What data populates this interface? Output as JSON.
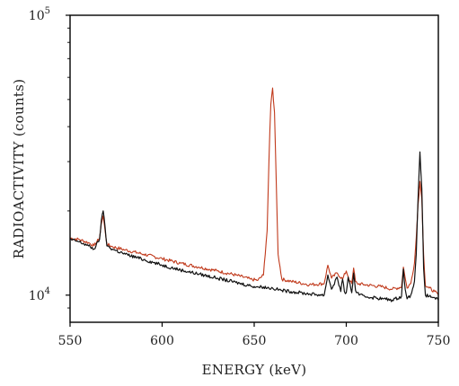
{
  "chart_data": {
    "type": "line",
    "title": "",
    "xlabel": "ENERGY (keV)",
    "ylabel": "RADIOACTIVITY (counts)",
    "xlim": [
      550,
      750
    ],
    "ylim": [
      8000,
      100000
    ],
    "yscale": "log",
    "grid": false,
    "x_ticks": [
      550,
      600,
      650,
      700,
      750
    ],
    "y_ticks": [
      {
        "value": 10000,
        "base": "10",
        "exponent": "4"
      },
      {
        "value": 100000,
        "base": "10",
        "exponent": "5"
      }
    ],
    "series": [
      {
        "color": "#c0391b",
        "x": [
          550,
          555,
          560,
          563,
          566,
          567,
          568,
          569,
          570,
          573,
          580,
          590,
          600,
          610,
          620,
          630,
          640,
          648,
          652,
          655,
          657,
          658,
          659,
          660,
          661,
          662,
          663,
          665,
          670,
          680,
          688,
          690,
          692,
          695,
          698,
          700,
          702,
          703,
          704,
          705,
          706,
          710,
          720,
          725,
          730,
          731,
          732,
          733,
          735,
          737,
          738,
          739,
          740,
          741,
          742,
          743,
          745,
          748,
          750
        ],
        "y": [
          16000,
          15800,
          15400,
          15000,
          16000,
          18000,
          19200,
          17000,
          15200,
          14900,
          14500,
          14000,
          13500,
          13000,
          12600,
          12200,
          11800,
          11400,
          11300,
          11800,
          17000,
          30000,
          48000,
          55000,
          45000,
          25000,
          14000,
          11400,
          11200,
          10900,
          11000,
          12800,
          11500,
          12000,
          11400,
          12200,
          11200,
          11000,
          12500,
          11200,
          11000,
          10900,
          10700,
          10500,
          10700,
          12600,
          11500,
          10600,
          11000,
          13000,
          16000,
          21000,
          25500,
          22000,
          14000,
          10800,
          10600,
          10300,
          10000
        ]
      },
      {
        "color": "#111111",
        "x": [
          550,
          555,
          560,
          563,
          566,
          567,
          568,
          569,
          570,
          573,
          580,
          590,
          600,
          610,
          620,
          630,
          640,
          648,
          652,
          655,
          658,
          660,
          662,
          665,
          670,
          680,
          688,
          690,
          692,
          695,
          697,
          698,
          699,
          700,
          701,
          703,
          704,
          705,
          707,
          710,
          720,
          725,
          730,
          731,
          732,
          733,
          735,
          737,
          738,
          739,
          740,
          741,
          742,
          743,
          745,
          748,
          750
        ],
        "y": [
          15800,
          15500,
          15000,
          14600,
          15800,
          18500,
          20000,
          17500,
          15000,
          14600,
          14000,
          13400,
          12800,
          12300,
          11900,
          11500,
          11100,
          10800,
          10700,
          10700,
          10600,
          10600,
          10500,
          10400,
          10300,
          10100,
          10000,
          11800,
          10500,
          11600,
          10300,
          11400,
          10300,
          10200,
          11600,
          10200,
          12000,
          10400,
          10000,
          9900,
          9700,
          9600,
          9900,
          12400,
          10500,
          9700,
          10000,
          11200,
          14000,
          22000,
          32500,
          24000,
          12500,
          10000,
          9900,
          9800,
          9600
        ]
      }
    ]
  }
}
